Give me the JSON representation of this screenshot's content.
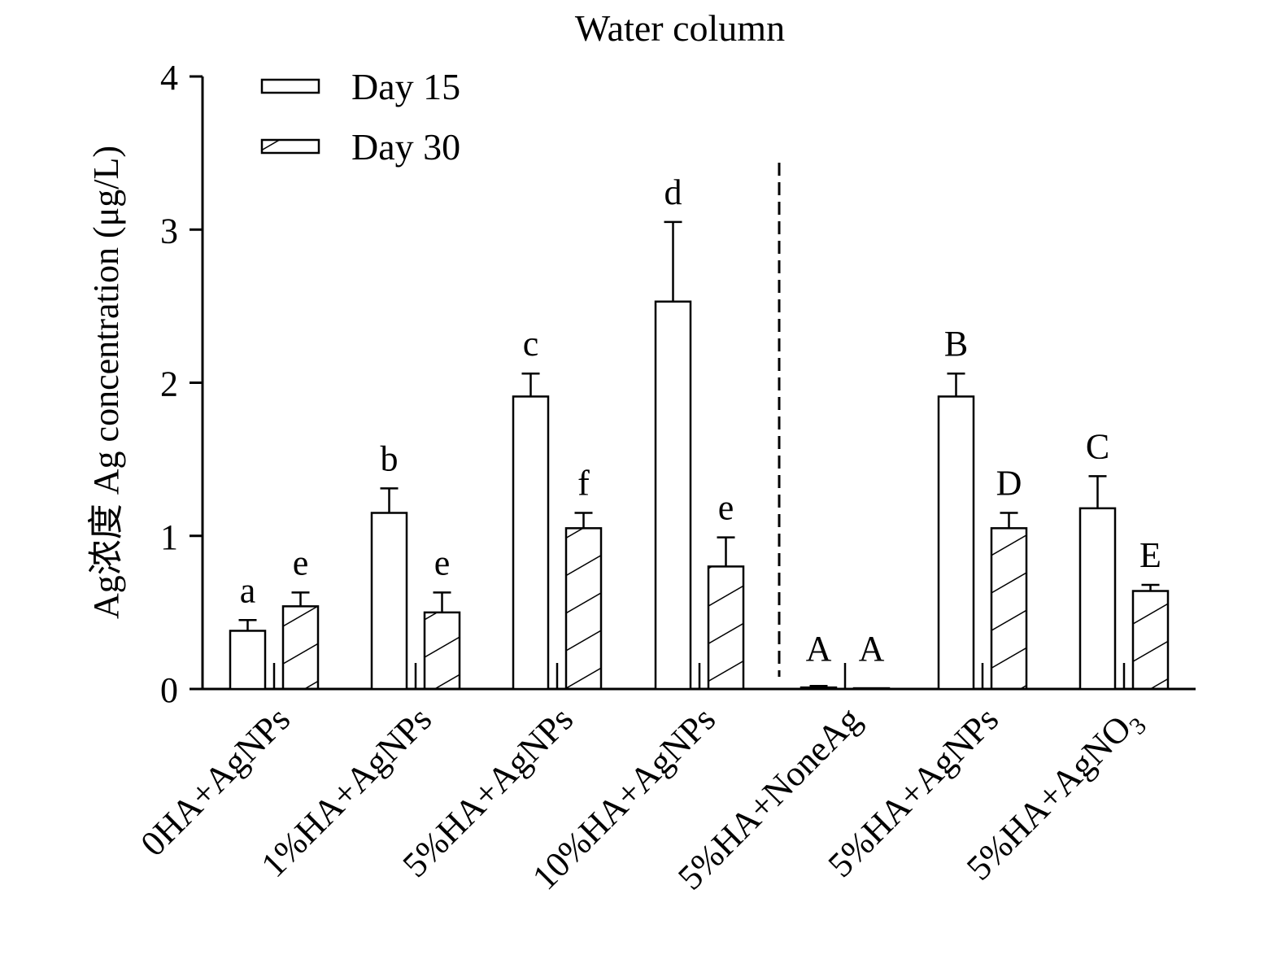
{
  "chart_data": {
    "type": "bar",
    "title": "Water column",
    "ylabel": "Ag浓度 Ag concentration (μg/L)",
    "xlabel": "",
    "ylim": [
      0,
      4
    ],
    "yticks": [
      0,
      1,
      2,
      3,
      4
    ],
    "ytick_labels": [
      "0",
      "1",
      "2",
      "3",
      "4"
    ],
    "grid": false,
    "legend_position": "top-left",
    "categories": [
      "0HA+AgNPs",
      "1%HA+AgNPs",
      "5%HA+AgNPs",
      "10%HA+AgNPs",
      "5%HA+NoneAg",
      "5%HA+AgNPs",
      "5%HA+AgNO3"
    ],
    "category_labels": [
      {
        "main": "0HA+AgNPs",
        "sub": ""
      },
      {
        "main": "1%HA+AgNPs",
        "sub": ""
      },
      {
        "main": "5%HA+AgNPs",
        "sub": ""
      },
      {
        "main": "10%HA+AgNPs",
        "sub": ""
      },
      {
        "main": "5%HA+NoneAg",
        "sub": ""
      },
      {
        "main": "5%HA+AgNPs",
        "sub": ""
      },
      {
        "main": "5%HA+AgNO",
        "sub": "3"
      }
    ],
    "series": [
      {
        "name": "Day 15",
        "pattern": "open",
        "values": [
          0.38,
          1.15,
          1.91,
          2.53,
          0.01,
          1.91,
          1.18
        ],
        "errors": [
          0.07,
          0.16,
          0.15,
          0.52,
          0.01,
          0.15,
          0.21
        ],
        "letters": [
          "a",
          "b",
          "c",
          "d",
          "A",
          "B",
          "C"
        ]
      },
      {
        "name": "Day 30",
        "pattern": "hatched",
        "values": [
          0.54,
          0.5,
          1.05,
          0.8,
          0.005,
          1.05,
          0.64
        ],
        "errors": [
          0.09,
          0.13,
          0.1,
          0.19,
          0,
          0.1,
          0.04
        ],
        "letters": [
          "e",
          "e",
          "f",
          "e",
          "A",
          "D",
          "E"
        ]
      }
    ],
    "annotations": [
      "dashed vertical divider between 10%HA+AgNPs and 5%HA+NoneAg groups"
    ]
  }
}
